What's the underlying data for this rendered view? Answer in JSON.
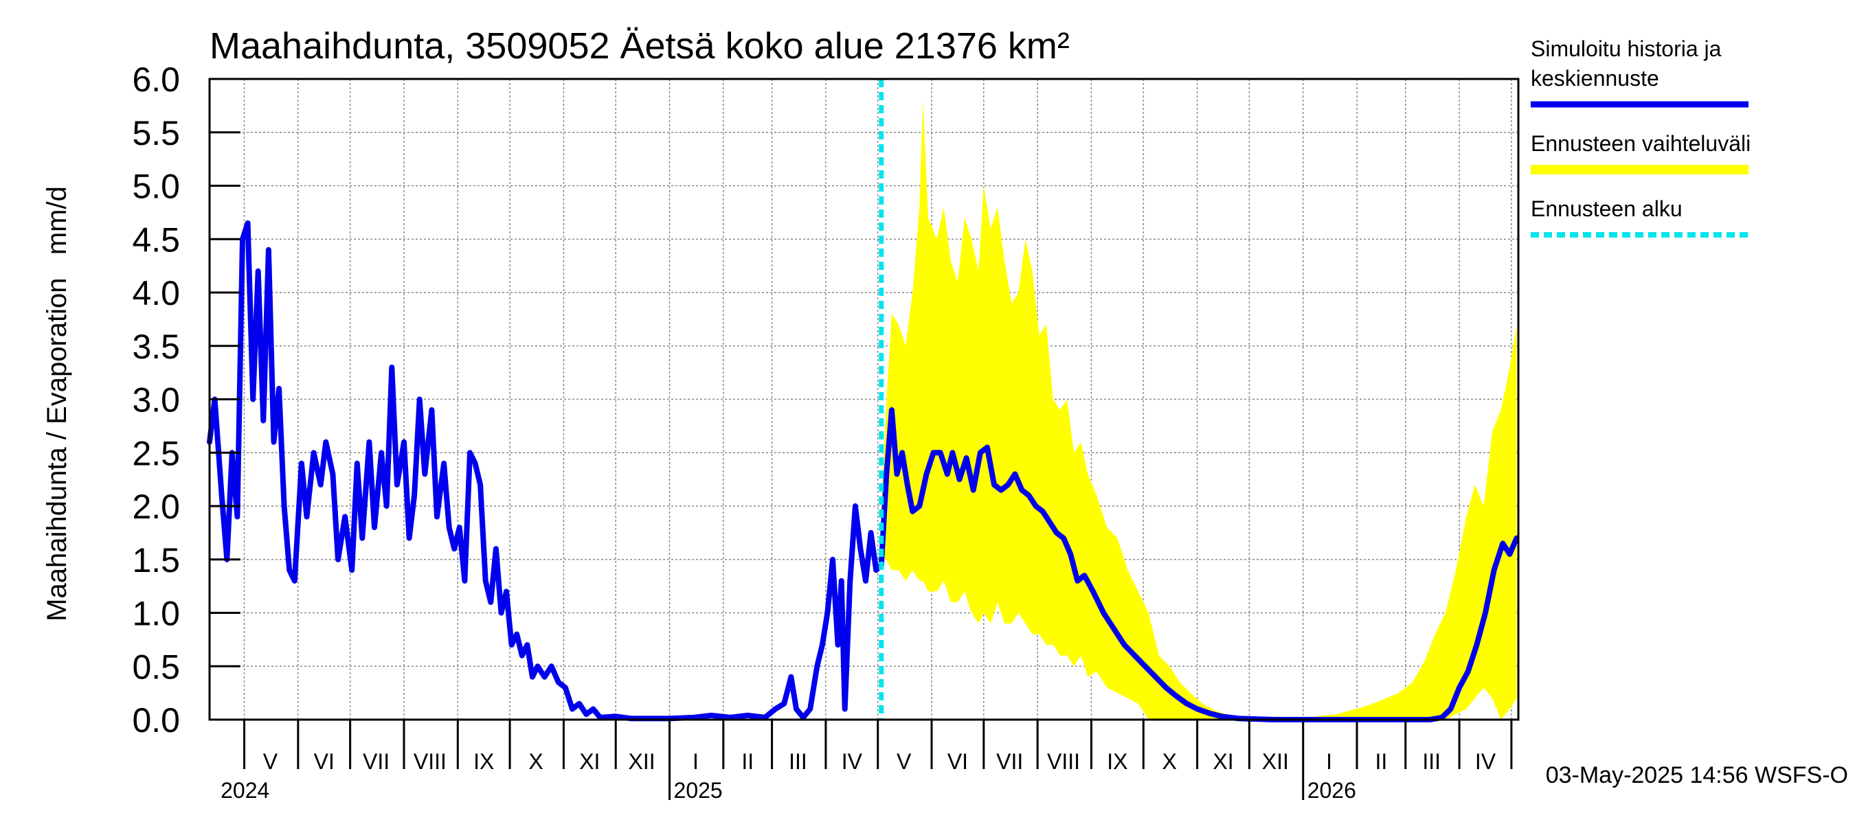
{
  "chart_data": {
    "type": "line",
    "title": "Maahaihdunta, 3509052 Äetsä koko alue 21376 km²",
    "ylabel": "Maahaihdunta / Evaporation   mm/d",
    "ylim": [
      0,
      6
    ],
    "yticks": [
      "0.0",
      "0.5",
      "1.0",
      "1.5",
      "2.0",
      "2.5",
      "3.0",
      "3.5",
      "4.0",
      "4.5",
      "5.0",
      "5.5",
      "6.0"
    ],
    "x_start": "2024-04-11",
    "x_end": "2026-05-05",
    "month_labels": [
      {
        "label": "V",
        "date": "2024-05-16"
      },
      {
        "label": "VI",
        "date": "2024-06-16"
      },
      {
        "label": "VII",
        "date": "2024-07-16"
      },
      {
        "label": "VIII",
        "date": "2024-08-16"
      },
      {
        "label": "IX",
        "date": "2024-09-16"
      },
      {
        "label": "X",
        "date": "2024-10-16"
      },
      {
        "label": "XI",
        "date": "2024-11-16"
      },
      {
        "label": "XII",
        "date": "2024-12-16"
      },
      {
        "label": "I",
        "date": "2025-01-16"
      },
      {
        "label": "II",
        "date": "2025-02-15"
      },
      {
        "label": "III",
        "date": "2025-03-16"
      },
      {
        "label": "IV",
        "date": "2025-04-16"
      },
      {
        "label": "V",
        "date": "2025-05-16"
      },
      {
        "label": "VI",
        "date": "2025-06-16"
      },
      {
        "label": "VII",
        "date": "2025-07-16"
      },
      {
        "label": "VIII",
        "date": "2025-08-16"
      },
      {
        "label": "IX",
        "date": "2025-09-16"
      },
      {
        "label": "X",
        "date": "2025-10-16"
      },
      {
        "label": "XI",
        "date": "2025-11-16"
      },
      {
        "label": "XII",
        "date": "2025-12-16"
      },
      {
        "label": "I",
        "date": "2026-01-16"
      },
      {
        "label": "II",
        "date": "2026-02-15"
      },
      {
        "label": "III",
        "date": "2026-03-16"
      },
      {
        "label": "IV",
        "date": "2026-04-16"
      }
    ],
    "year_labels": [
      {
        "label": "2024",
        "date": "2024-04-15"
      },
      {
        "label": "2025",
        "date": "2025-01-01"
      },
      {
        "label": "2026",
        "date": "2026-01-01"
      }
    ],
    "forecast_start": "2025-05-03",
    "legend": {
      "placement": "right",
      "items": [
        {
          "label_lines": [
            "Simuloitu historia ja",
            "keskiennuste"
          ],
          "color": "#0000ee",
          "style": "solid"
        },
        {
          "label_lines": [
            "Ennusteen vaihteluväli"
          ],
          "color": "#ffff00",
          "style": "band"
        },
        {
          "label_lines": [
            "Ennusteen alku"
          ],
          "color": "#00e5ee",
          "style": "dashed"
        }
      ]
    },
    "footer": "03-May-2025 14:56 WSFS-O",
    "series": [
      {
        "name": "Simuloitu historia ja keskiennuste",
        "color": "#0000ee",
        "points": [
          [
            "2024-04-11",
            2.6
          ],
          [
            "2024-04-14",
            3.0
          ],
          [
            "2024-04-18",
            2.1
          ],
          [
            "2024-04-21",
            1.5
          ],
          [
            "2024-04-24",
            2.5
          ],
          [
            "2024-04-27",
            1.9
          ],
          [
            "2024-04-30",
            4.5
          ],
          [
            "2024-05-03",
            4.65
          ],
          [
            "2024-05-06",
            3.0
          ],
          [
            "2024-05-09",
            4.2
          ],
          [
            "2024-05-12",
            2.8
          ],
          [
            "2024-05-15",
            4.4
          ],
          [
            "2024-05-18",
            2.6
          ],
          [
            "2024-05-21",
            3.1
          ],
          [
            "2024-05-24",
            2.0
          ],
          [
            "2024-05-27",
            1.4
          ],
          [
            "2024-05-30",
            1.3
          ],
          [
            "2024-06-03",
            2.4
          ],
          [
            "2024-06-06",
            1.9
          ],
          [
            "2024-06-10",
            2.5
          ],
          [
            "2024-06-14",
            2.2
          ],
          [
            "2024-06-17",
            2.6
          ],
          [
            "2024-06-21",
            2.3
          ],
          [
            "2024-06-24",
            1.5
          ],
          [
            "2024-06-28",
            1.9
          ],
          [
            "2024-07-02",
            1.4
          ],
          [
            "2024-07-05",
            2.4
          ],
          [
            "2024-07-08",
            1.7
          ],
          [
            "2024-07-12",
            2.6
          ],
          [
            "2024-07-15",
            1.8
          ],
          [
            "2024-07-19",
            2.5
          ],
          [
            "2024-07-22",
            2.0
          ],
          [
            "2024-07-25",
            3.3
          ],
          [
            "2024-07-28",
            2.2
          ],
          [
            "2024-08-01",
            2.6
          ],
          [
            "2024-08-04",
            1.7
          ],
          [
            "2024-08-07",
            2.1
          ],
          [
            "2024-08-10",
            3.0
          ],
          [
            "2024-08-13",
            2.3
          ],
          [
            "2024-08-17",
            2.9
          ],
          [
            "2024-08-20",
            1.9
          ],
          [
            "2024-08-24",
            2.4
          ],
          [
            "2024-08-27",
            1.8
          ],
          [
            "2024-08-30",
            1.6
          ],
          [
            "2024-09-02",
            1.8
          ],
          [
            "2024-09-05",
            1.3
          ],
          [
            "2024-09-08",
            2.5
          ],
          [
            "2024-09-11",
            2.4
          ],
          [
            "2024-09-14",
            2.2
          ],
          [
            "2024-09-17",
            1.3
          ],
          [
            "2024-09-20",
            1.1
          ],
          [
            "2024-09-23",
            1.6
          ],
          [
            "2024-09-26",
            1.0
          ],
          [
            "2024-09-29",
            1.2
          ],
          [
            "2024-10-02",
            0.7
          ],
          [
            "2024-10-05",
            0.8
          ],
          [
            "2024-10-08",
            0.6
          ],
          [
            "2024-10-11",
            0.7
          ],
          [
            "2024-10-14",
            0.4
          ],
          [
            "2024-10-17",
            0.5
          ],
          [
            "2024-10-21",
            0.4
          ],
          [
            "2024-10-25",
            0.5
          ],
          [
            "2024-10-29",
            0.35
          ],
          [
            "2024-11-02",
            0.3
          ],
          [
            "2024-11-06",
            0.1
          ],
          [
            "2024-11-10",
            0.15
          ],
          [
            "2024-11-14",
            0.05
          ],
          [
            "2024-11-18",
            0.1
          ],
          [
            "2024-11-22",
            0.02
          ],
          [
            "2024-12-01",
            0.03
          ],
          [
            "2024-12-10",
            0.01
          ],
          [
            "2025-01-01",
            0.01
          ],
          [
            "2025-01-15",
            0.02
          ],
          [
            "2025-01-25",
            0.04
          ],
          [
            "2025-02-05",
            0.02
          ],
          [
            "2025-02-15",
            0.04
          ],
          [
            "2025-02-25",
            0.02
          ],
          [
            "2025-03-03",
            0.1
          ],
          [
            "2025-03-08",
            0.15
          ],
          [
            "2025-03-12",
            0.4
          ],
          [
            "2025-03-15",
            0.1
          ],
          [
            "2025-03-19",
            0.02
          ],
          [
            "2025-03-23",
            0.1
          ],
          [
            "2025-03-27",
            0.5
          ],
          [
            "2025-03-30",
            0.7
          ],
          [
            "2025-04-02",
            1.0
          ],
          [
            "2025-04-05",
            1.5
          ],
          [
            "2025-04-08",
            0.7
          ],
          [
            "2025-04-10",
            1.3
          ],
          [
            "2025-04-12",
            0.1
          ],
          [
            "2025-04-15",
            1.3
          ],
          [
            "2025-04-18",
            2.0
          ],
          [
            "2025-04-21",
            1.6
          ],
          [
            "2025-04-24",
            1.3
          ],
          [
            "2025-04-27",
            1.75
          ],
          [
            "2025-04-30",
            1.4
          ],
          [
            "2025-05-03",
            1.45
          ],
          [
            "2025-05-06",
            2.3
          ],
          [
            "2025-05-09",
            2.9
          ],
          [
            "2025-05-12",
            2.3
          ],
          [
            "2025-05-15",
            2.5
          ],
          [
            "2025-05-18",
            2.2
          ],
          [
            "2025-05-21",
            1.95
          ],
          [
            "2025-05-25",
            2.0
          ],
          [
            "2025-05-29",
            2.3
          ],
          [
            "2025-06-02",
            2.5
          ],
          [
            "2025-06-06",
            2.5
          ],
          [
            "2025-06-10",
            2.3
          ],
          [
            "2025-06-13",
            2.5
          ],
          [
            "2025-06-17",
            2.25
          ],
          [
            "2025-06-21",
            2.45
          ],
          [
            "2025-06-25",
            2.15
          ],
          [
            "2025-06-29",
            2.5
          ],
          [
            "2025-07-03",
            2.55
          ],
          [
            "2025-07-07",
            2.2
          ],
          [
            "2025-07-11",
            2.15
          ],
          [
            "2025-07-15",
            2.2
          ],
          [
            "2025-07-19",
            2.3
          ],
          [
            "2025-07-23",
            2.15
          ],
          [
            "2025-07-27",
            2.1
          ],
          [
            "2025-07-31",
            2.0
          ],
          [
            "2025-08-04",
            1.95
          ],
          [
            "2025-08-08",
            1.85
          ],
          [
            "2025-08-12",
            1.75
          ],
          [
            "2025-08-16",
            1.7
          ],
          [
            "2025-08-20",
            1.55
          ],
          [
            "2025-08-24",
            1.3
          ],
          [
            "2025-08-28",
            1.35
          ],
          [
            "2025-09-02",
            1.2
          ],
          [
            "2025-09-08",
            1.0
          ],
          [
            "2025-09-14",
            0.85
          ],
          [
            "2025-09-20",
            0.7
          ],
          [
            "2025-09-26",
            0.6
          ],
          [
            "2025-10-02",
            0.5
          ],
          [
            "2025-10-08",
            0.4
          ],
          [
            "2025-10-14",
            0.3
          ],
          [
            "2025-10-20",
            0.22
          ],
          [
            "2025-10-26",
            0.15
          ],
          [
            "2025-11-01",
            0.1
          ],
          [
            "2025-11-08",
            0.06
          ],
          [
            "2025-11-15",
            0.03
          ],
          [
            "2025-11-25",
            0.01
          ],
          [
            "2025-12-15",
            0.0
          ],
          [
            "2026-01-15",
            0.0
          ],
          [
            "2026-02-15",
            0.0
          ],
          [
            "2026-03-15",
            0.0
          ],
          [
            "2026-03-22",
            0.02
          ],
          [
            "2026-03-27",
            0.1
          ],
          [
            "2026-04-01",
            0.3
          ],
          [
            "2026-04-06",
            0.45
          ],
          [
            "2026-04-11",
            0.7
          ],
          [
            "2026-04-16",
            1.0
          ],
          [
            "2026-04-21",
            1.4
          ],
          [
            "2026-04-26",
            1.65
          ],
          [
            "2026-04-30",
            1.55
          ],
          [
            "2026-05-04",
            1.7
          ]
        ]
      }
    ],
    "band": {
      "name": "Ennusteen vaihteluväli",
      "color": "#ffff00",
      "points": [
        [
          "2025-05-03",
          1.5,
          2.0
        ],
        [
          "2025-05-06",
          1.5,
          3.0
        ],
        [
          "2025-05-09",
          1.4,
          3.8
        ],
        [
          "2025-05-13",
          1.4,
          3.7
        ],
        [
          "2025-05-17",
          1.3,
          3.5
        ],
        [
          "2025-05-21",
          1.4,
          4.0
        ],
        [
          "2025-05-25",
          1.3,
          4.8
        ],
        [
          "2025-05-27",
          1.3,
          5.8
        ],
        [
          "2025-05-30",
          1.2,
          4.7
        ],
        [
          "2025-06-04",
          1.2,
          4.5
        ],
        [
          "2025-06-08",
          1.3,
          4.8
        ],
        [
          "2025-06-12",
          1.1,
          4.3
        ],
        [
          "2025-06-16",
          1.1,
          4.1
        ],
        [
          "2025-06-20",
          1.2,
          4.7
        ],
        [
          "2025-06-24",
          1.0,
          4.5
        ],
        [
          "2025-06-28",
          0.9,
          4.2
        ],
        [
          "2025-07-01",
          1.0,
          5.0
        ],
        [
          "2025-07-05",
          0.9,
          4.6
        ],
        [
          "2025-07-09",
          1.1,
          4.8
        ],
        [
          "2025-07-13",
          0.9,
          4.3
        ],
        [
          "2025-07-17",
          0.9,
          3.9
        ],
        [
          "2025-07-21",
          1.0,
          4.0
        ],
        [
          "2025-07-25",
          0.9,
          4.5
        ],
        [
          "2025-07-29",
          0.8,
          4.2
        ],
        [
          "2025-08-02",
          0.8,
          3.6
        ],
        [
          "2025-08-06",
          0.7,
          3.7
        ],
        [
          "2025-08-10",
          0.7,
          3.0
        ],
        [
          "2025-08-14",
          0.6,
          2.9
        ],
        [
          "2025-08-18",
          0.6,
          3.0
        ],
        [
          "2025-08-22",
          0.5,
          2.5
        ],
        [
          "2025-08-26",
          0.6,
          2.6
        ],
        [
          "2025-08-30",
          0.4,
          2.3
        ],
        [
          "2025-09-04",
          0.45,
          2.1
        ],
        [
          "2025-09-10",
          0.3,
          1.8
        ],
        [
          "2025-09-16",
          0.25,
          1.7
        ],
        [
          "2025-09-22",
          0.2,
          1.4
        ],
        [
          "2025-09-28",
          0.15,
          1.2
        ],
        [
          "2025-10-04",
          0.0,
          1.0
        ],
        [
          "2025-10-10",
          0.0,
          0.6
        ],
        [
          "2025-10-16",
          0.0,
          0.5
        ],
        [
          "2025-10-22",
          0.0,
          0.35
        ],
        [
          "2025-10-28",
          0.0,
          0.25
        ],
        [
          "2025-11-04",
          0.0,
          0.15
        ],
        [
          "2025-11-12",
          0.0,
          0.08
        ],
        [
          "2025-11-22",
          0.0,
          0.03
        ],
        [
          "2025-12-05",
          0.0,
          0.02
        ],
        [
          "2026-01-01",
          0.0,
          0.02
        ],
        [
          "2026-01-20",
          0.0,
          0.05
        ],
        [
          "2026-02-05",
          0.0,
          0.12
        ],
        [
          "2026-02-15",
          0.0,
          0.18
        ],
        [
          "2026-02-25",
          0.0,
          0.25
        ],
        [
          "2026-03-05",
          0.0,
          0.35
        ],
        [
          "2026-03-12",
          0.0,
          0.55
        ],
        [
          "2026-03-18",
          0.0,
          0.8
        ],
        [
          "2026-03-24",
          0.0,
          1.0
        ],
        [
          "2026-03-30",
          0.05,
          1.4
        ],
        [
          "2026-04-05",
          0.1,
          1.9
        ],
        [
          "2026-04-10",
          0.2,
          2.2
        ],
        [
          "2026-04-15",
          0.3,
          2.0
        ],
        [
          "2026-04-20",
          0.2,
          2.7
        ],
        [
          "2026-04-25",
          0.0,
          2.9
        ],
        [
          "2026-04-30",
          0.1,
          3.3
        ],
        [
          "2026-05-04",
          0.2,
          3.7
        ]
      ]
    }
  }
}
